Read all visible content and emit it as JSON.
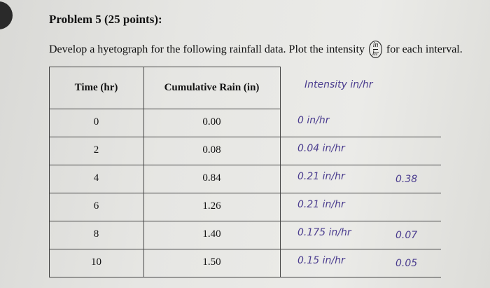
{
  "header": {
    "title": "Problem 5 (25 points):",
    "prompt": "Develop a hyetograph for the following rainfall data. Plot the intensity",
    "unit_numerator": "in",
    "unit_denominator": "hr",
    "prompt_end": "for each interval."
  },
  "table": {
    "columns": [
      "Time (hr)",
      "Cumulative Rain (in)",
      "Intensity in/hr"
    ],
    "rows": [
      {
        "time": "0",
        "rain": "0.00",
        "intensity": "0 in/hr"
      },
      {
        "time": "2",
        "rain": "0.08",
        "intensity": "0.04 in/hr"
      },
      {
        "time": "4",
        "rain": "0.84",
        "intensity": "0.21 in/hr",
        "note": "0.38"
      },
      {
        "time": "6",
        "rain": "1.26",
        "intensity": "0.21 in/hr"
      },
      {
        "time": "8",
        "rain": "1.40",
        "intensity": "0.175 in/hr",
        "note": "0.07"
      },
      {
        "time": "10",
        "rain": "1.50",
        "intensity": "0.15 in/hr",
        "note": "0.05"
      }
    ]
  }
}
